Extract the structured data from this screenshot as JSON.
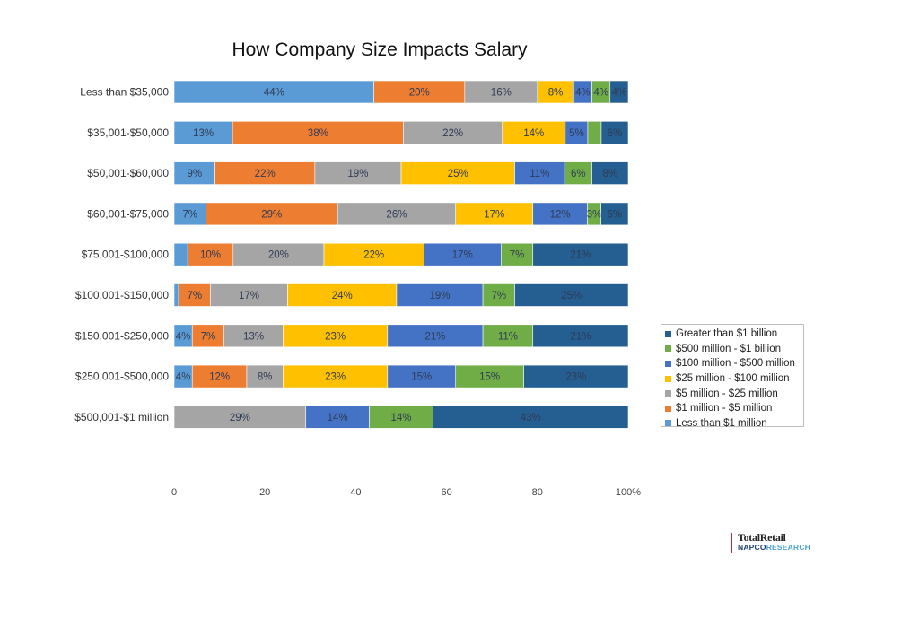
{
  "chart_data": {
    "type": "bar",
    "orientation": "horizontal",
    "stacked": true,
    "title": "How Company Size Impacts Salary",
    "xlim": [
      0,
      100
    ],
    "x_ticks": [
      "0",
      "20",
      "40",
      "60",
      "80",
      "100%"
    ],
    "legend_position": "right",
    "categories": [
      "Less than $35,000",
      "$35,001-$50,000",
      "$50,001-$60,000",
      "$60,001-$75,000",
      "$75,001-$100,000",
      "$100,001-$150,000",
      "$150,001-$250,000",
      "$250,001-$500,000",
      "$500,001-$1 million"
    ],
    "series": [
      {
        "name": "Less than $1 million",
        "color": "#5b9bd5",
        "values": [
          44,
          13,
          9,
          7,
          3,
          1,
          4,
          4,
          0
        ],
        "labels": [
          "44%",
          "13%",
          "9%",
          "7%",
          "",
          "",
          "4%",
          "4%",
          ""
        ]
      },
      {
        "name": "$1 million - $5 million",
        "color": "#ed7d31",
        "values": [
          20,
          38,
          22,
          29,
          10,
          7,
          7,
          12,
          0
        ],
        "labels": [
          "20%",
          "38%",
          "22%",
          "29%",
          "10%",
          "7%",
          "7%",
          "12%",
          ""
        ]
      },
      {
        "name": "$5 million - $25 million",
        "color": "#a5a5a5",
        "values": [
          16,
          22,
          19,
          26,
          20,
          17,
          13,
          8,
          29
        ],
        "labels": [
          "16%",
          "22%",
          "19%",
          "26%",
          "20%",
          "17%",
          "13%",
          "8%",
          "29%"
        ]
      },
      {
        "name": "$25 million - $100 million",
        "color": "#ffc000",
        "values": [
          8,
          14,
          25,
          17,
          22,
          24,
          23,
          23,
          0
        ],
        "labels": [
          "8%",
          "14%",
          "25%",
          "17%",
          "22%",
          "24%",
          "23%",
          "23%",
          ""
        ]
      },
      {
        "name": "$100 million - $500 million",
        "color": "#4472c4",
        "values": [
          4,
          5,
          11,
          12,
          17,
          19,
          21,
          15,
          14
        ],
        "labels": [
          "4%",
          "5%",
          "11%",
          "12%",
          "17%",
          "19%",
          "21%",
          "15%",
          "14%"
        ]
      },
      {
        "name": "$500 million - $1 billion",
        "color": "#70ad47",
        "values": [
          4,
          3,
          6,
          3,
          7,
          7,
          11,
          15,
          14
        ],
        "labels": [
          "4%",
          "",
          "6%",
          "3%",
          "7%",
          "7%",
          "11%",
          "15%",
          "14%"
        ]
      },
      {
        "name": "Greater than $1 billion",
        "color": "#255e91",
        "values": [
          4,
          6,
          8,
          6,
          21,
          25,
          21,
          23,
          43
        ],
        "labels": [
          "4%",
          "6%",
          "8%",
          "6%",
          "21%",
          "25%",
          "21%",
          "23%",
          "43%"
        ]
      }
    ]
  },
  "brand": {
    "line1": "TotalRetail",
    "line2a": "NAPCO",
    "line2b": "RESEARCH"
  }
}
